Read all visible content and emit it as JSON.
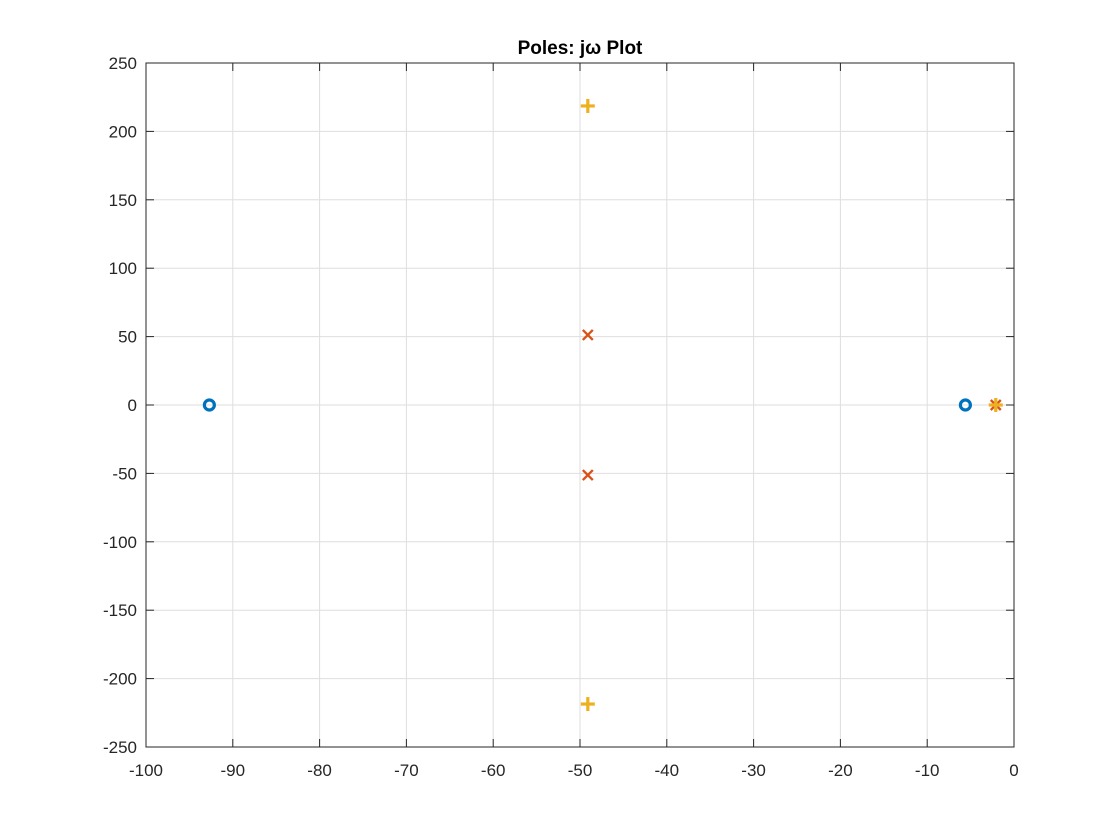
{
  "chart_data": {
    "type": "scatter",
    "title": "Poles: jω Plot",
    "xlabel": "",
    "ylabel": "",
    "xlim": [
      -100,
      0
    ],
    "ylim": [
      -250,
      250
    ],
    "xticks": [
      -100,
      -90,
      -80,
      -70,
      -60,
      -50,
      -40,
      -30,
      -20,
      -10,
      0
    ],
    "yticks": [
      -250,
      -200,
      -150,
      -100,
      -50,
      0,
      50,
      100,
      150,
      200,
      250
    ],
    "grid": true,
    "series": [
      {
        "marker": "circle",
        "color": "#0072BD",
        "points": [
          {
            "x": -92.7,
            "y": 0
          },
          {
            "x": -5.6,
            "y": 0
          }
        ]
      },
      {
        "marker": "x",
        "color": "#D95319",
        "points": [
          {
            "x": -49.1,
            "y": 51.2
          },
          {
            "x": -49.1,
            "y": -51.2
          },
          {
            "x": -2.1,
            "y": 0
          }
        ]
      },
      {
        "marker": "plus",
        "color": "#EDB120",
        "points": [
          {
            "x": -49.1,
            "y": 218.6
          },
          {
            "x": -49.1,
            "y": -218.6
          },
          {
            "x": -2.1,
            "y": 0
          }
        ]
      }
    ]
  }
}
